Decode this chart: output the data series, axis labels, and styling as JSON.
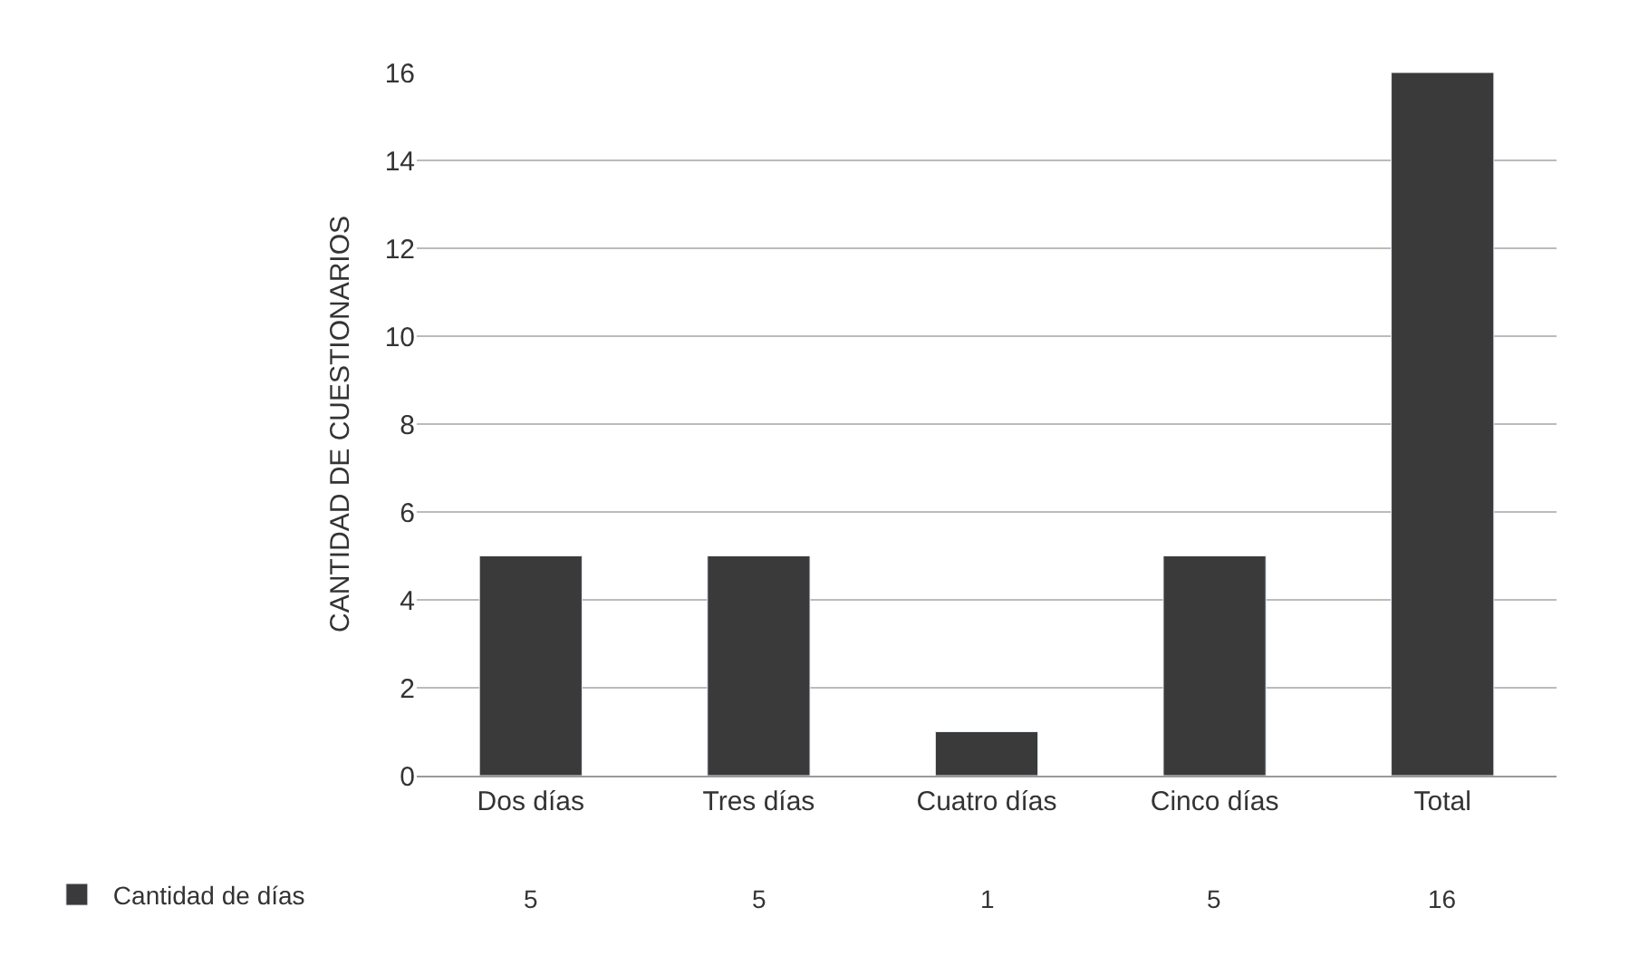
{
  "chart_data": {
    "type": "bar",
    "ylabel": "CANTIDAD DE CUESTIONARIOS",
    "categories": [
      "Dos días",
      "Tres días",
      "Cuatro días",
      "Cinco días",
      "Total"
    ],
    "series": [
      {
        "name": "Cantidad de días",
        "color": "#3a3a3a",
        "values": [
          5,
          5,
          1,
          5,
          16
        ]
      }
    ],
    "ylim": [
      0,
      16
    ],
    "yticks": [
      0,
      2,
      4,
      6,
      8,
      10,
      12,
      14,
      16
    ],
    "grid": "y",
    "legend": "bottom left",
    "data_labels": true
  }
}
